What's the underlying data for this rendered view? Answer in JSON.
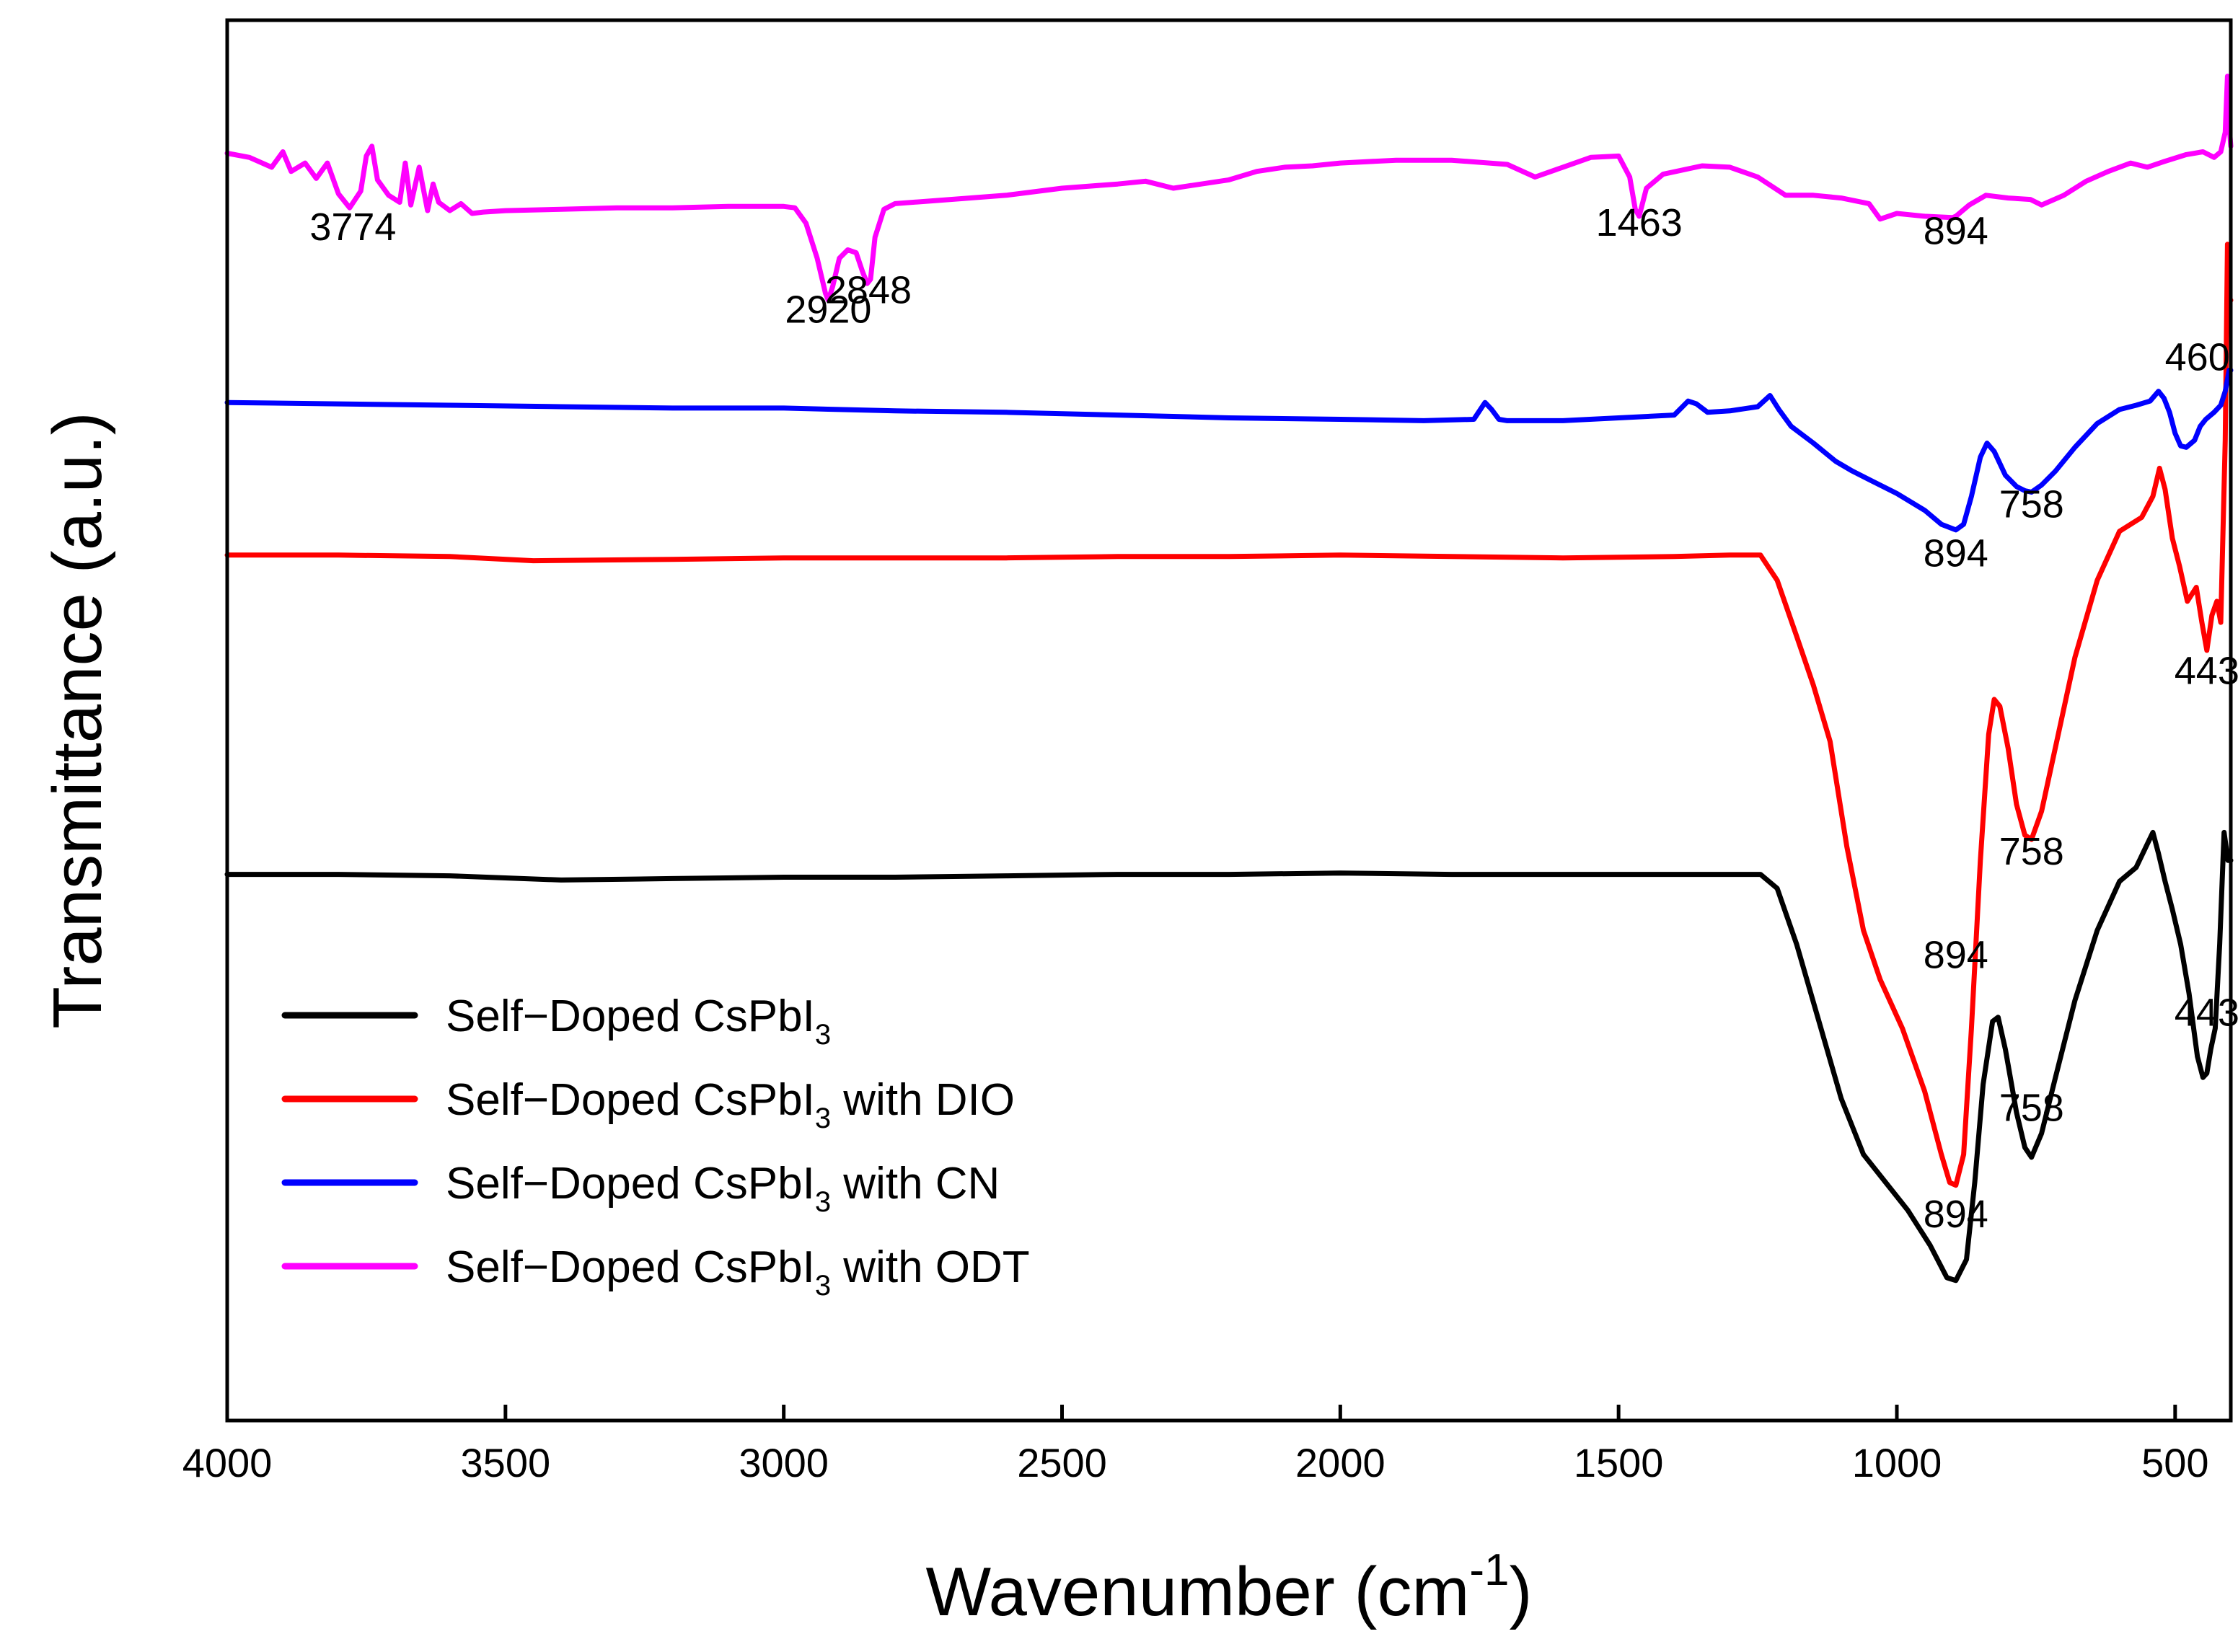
{
  "chart_data": {
    "type": "line",
    "title": "",
    "xlabel_main": "Wavenumber (cm",
    "xlabel_sup": "-1",
    "xlabel_close": ")",
    "ylabel": "Transmittance (a.u.)",
    "xlim": [
      4000,
      400
    ],
    "xticks": [
      4000,
      3500,
      3000,
      2500,
      2000,
      1500,
      1000,
      500
    ],
    "xtick_labels": [
      "4000",
      "3500",
      "3000",
      "2500",
      "2000",
      "1500",
      "1000",
      "500"
    ],
    "y_units": "arbitrary (vertically offset traces)",
    "ylim": [
      0,
      100
    ],
    "legend_position": "bottom-left",
    "series": [
      {
        "name": "Self-Doped CsPbI3",
        "legend_label": "Self−Doped CsPbI",
        "legend_sub": "3",
        "legend_suffix": "",
        "color": "#000000",
        "points": [
          [
            4000,
            39.0
          ],
          [
            3800,
            39.0
          ],
          [
            3600,
            38.9
          ],
          [
            3400,
            38.6
          ],
          [
            3200,
            38.7
          ],
          [
            3000,
            38.8
          ],
          [
            2800,
            38.8
          ],
          [
            2600,
            38.9
          ],
          [
            2400,
            39.0
          ],
          [
            2200,
            39.0
          ],
          [
            2000,
            39.1
          ],
          [
            1800,
            39.0
          ],
          [
            1600,
            39.0
          ],
          [
            1400,
            39.0
          ],
          [
            1300,
            39.0
          ],
          [
            1245,
            39.0
          ],
          [
            1215,
            38.0
          ],
          [
            1180,
            34.0
          ],
          [
            1140,
            28.5
          ],
          [
            1100,
            23.0
          ],
          [
            1060,
            19.0
          ],
          [
            1020,
            17.0
          ],
          [
            980,
            15.0
          ],
          [
            940,
            12.5
          ],
          [
            910,
            10.2
          ],
          [
            894,
            10.0
          ],
          [
            875,
            11.5
          ],
          [
            860,
            17.0
          ],
          [
            845,
            24.0
          ],
          [
            828,
            28.5
          ],
          [
            818,
            28.8
          ],
          [
            805,
            26.5
          ],
          [
            785,
            22.0
          ],
          [
            770,
            19.5
          ],
          [
            758,
            18.8
          ],
          [
            740,
            20.5
          ],
          [
            715,
            24.5
          ],
          [
            680,
            30.0
          ],
          [
            640,
            35.0
          ],
          [
            600,
            38.5
          ],
          [
            570,
            39.5
          ],
          [
            552,
            41.0
          ],
          [
            540,
            42.0
          ],
          [
            530,
            40.5
          ],
          [
            518,
            38.5
          ],
          [
            505,
            36.5
          ],
          [
            490,
            34.0
          ],
          [
            475,
            30.5
          ],
          [
            460,
            26.0
          ],
          [
            450,
            24.5
          ],
          [
            443,
            24.8
          ],
          [
            436,
            26.5
          ],
          [
            428,
            28.0
          ],
          [
            420,
            34.0
          ],
          [
            412,
            42.0
          ],
          [
            405,
            40.0
          ],
          [
            400,
            40.0
          ]
        ]
      },
      {
        "name": "Self-Doped CsPbI3 with DIO",
        "legend_label": "Self−Doped CsPbI",
        "legend_sub": "3",
        "legend_suffix": " with DIO",
        "color": "#ff0000",
        "points": [
          [
            4000,
            61.8
          ],
          [
            3800,
            61.8
          ],
          [
            3600,
            61.7
          ],
          [
            3450,
            61.4
          ],
          [
            3200,
            61.5
          ],
          [
            3000,
            61.6
          ],
          [
            2800,
            61.6
          ],
          [
            2600,
            61.6
          ],
          [
            2400,
            61.7
          ],
          [
            2200,
            61.7
          ],
          [
            2000,
            61.8
          ],
          [
            1800,
            61.7
          ],
          [
            1600,
            61.6
          ],
          [
            1400,
            61.7
          ],
          [
            1300,
            61.8
          ],
          [
            1245,
            61.8
          ],
          [
            1215,
            60.0
          ],
          [
            1180,
            56.0
          ],
          [
            1150,
            52.5
          ],
          [
            1120,
            48.5
          ],
          [
            1090,
            41.0
          ],
          [
            1060,
            35.0
          ],
          [
            1030,
            31.5
          ],
          [
            990,
            28.0
          ],
          [
            950,
            23.5
          ],
          [
            920,
            19.0
          ],
          [
            905,
            17.0
          ],
          [
            894,
            16.8
          ],
          [
            880,
            19.0
          ],
          [
            866,
            28.0
          ],
          [
            850,
            40.0
          ],
          [
            835,
            49.0
          ],
          [
            825,
            51.5
          ],
          [
            815,
            51.0
          ],
          [
            800,
            48.0
          ],
          [
            785,
            44.0
          ],
          [
            770,
            41.8
          ],
          [
            758,
            41.5
          ],
          [
            740,
            43.5
          ],
          [
            710,
            49.0
          ],
          [
            680,
            54.5
          ],
          [
            640,
            60.0
          ],
          [
            600,
            63.5
          ],
          [
            560,
            64.5
          ],
          [
            540,
            66.0
          ],
          [
            528,
            68.0
          ],
          [
            518,
            66.5
          ],
          [
            505,
            63.0
          ],
          [
            492,
            61.0
          ],
          [
            478,
            58.5
          ],
          [
            462,
            59.5
          ],
          [
            452,
            57.0
          ],
          [
            443,
            55.0
          ],
          [
            434,
            57.5
          ],
          [
            425,
            58.5
          ],
          [
            418,
            57.0
          ],
          [
            410,
            70.0
          ],
          [
            406,
            84.0
          ],
          [
            402,
            80.0
          ],
          [
            400,
            80.0
          ]
        ]
      },
      {
        "name": "Self-Doped CsPbI3 with CN",
        "legend_label": "Self−Doped CsPbI",
        "legend_sub": "3",
        "legend_suffix": " with CN",
        "color": "#0000ff",
        "points": [
          [
            4000,
            72.7
          ],
          [
            3800,
            72.6
          ],
          [
            3600,
            72.5
          ],
          [
            3400,
            72.4
          ],
          [
            3200,
            72.3
          ],
          [
            3000,
            72.3
          ],
          [
            2800,
            72.1
          ],
          [
            2600,
            72.0
          ],
          [
            2400,
            71.8
          ],
          [
            2200,
            71.6
          ],
          [
            2000,
            71.5
          ],
          [
            1850,
            71.4
          ],
          [
            1760,
            71.5
          ],
          [
            1740,
            72.7
          ],
          [
            1728,
            72.2
          ],
          [
            1715,
            71.5
          ],
          [
            1700,
            71.4
          ],
          [
            1600,
            71.4
          ],
          [
            1500,
            71.6
          ],
          [
            1400,
            71.8
          ],
          [
            1375,
            72.8
          ],
          [
            1360,
            72.6
          ],
          [
            1340,
            72.0
          ],
          [
            1300,
            72.1
          ],
          [
            1250,
            72.4
          ],
          [
            1228,
            73.2
          ],
          [
            1212,
            72.2
          ],
          [
            1190,
            71.0
          ],
          [
            1150,
            69.8
          ],
          [
            1110,
            68.5
          ],
          [
            1080,
            67.8
          ],
          [
            1050,
            67.2
          ],
          [
            1000,
            66.2
          ],
          [
            950,
            65.0
          ],
          [
            920,
            64.0
          ],
          [
            894,
            63.6
          ],
          [
            880,
            64.0
          ],
          [
            866,
            66.0
          ],
          [
            850,
            68.8
          ],
          [
            838,
            69.8
          ],
          [
            825,
            69.2
          ],
          [
            805,
            67.5
          ],
          [
            785,
            66.7
          ],
          [
            770,
            66.4
          ],
          [
            758,
            66.3
          ],
          [
            740,
            66.8
          ],
          [
            715,
            67.8
          ],
          [
            680,
            69.5
          ],
          [
            640,
            71.2
          ],
          [
            600,
            72.2
          ],
          [
            570,
            72.5
          ],
          [
            545,
            72.8
          ],
          [
            530,
            73.5
          ],
          [
            520,
            73.0
          ],
          [
            510,
            72.0
          ],
          [
            500,
            70.5
          ],
          [
            490,
            69.6
          ],
          [
            480,
            69.5
          ],
          [
            465,
            70.0
          ],
          [
            455,
            71.0
          ],
          [
            445,
            71.5
          ],
          [
            430,
            72.0
          ],
          [
            418,
            72.5
          ],
          [
            410,
            73.5
          ],
          [
            403,
            75.0
          ],
          [
            400,
            75.0
          ]
        ]
      },
      {
        "name": "Self-Doped CsPbI3 with ODT",
        "legend_label": "Self−Doped CsPbI",
        "legend_sub": "3",
        "legend_suffix": " with ODT",
        "color": "#ff00ff",
        "points": [
          [
            4000,
            90.5
          ],
          [
            3960,
            90.2
          ],
          [
            3920,
            89.5
          ],
          [
            3900,
            90.6
          ],
          [
            3885,
            89.2
          ],
          [
            3860,
            89.8
          ],
          [
            3840,
            88.7
          ],
          [
            3820,
            89.8
          ],
          [
            3800,
            87.6
          ],
          [
            3780,
            86.6
          ],
          [
            3760,
            87.8
          ],
          [
            3750,
            90.3
          ],
          [
            3740,
            91.0
          ],
          [
            3730,
            88.6
          ],
          [
            3710,
            87.5
          ],
          [
            3690,
            87.0
          ],
          [
            3680,
            89.8
          ],
          [
            3670,
            86.8
          ],
          [
            3655,
            89.5
          ],
          [
            3640,
            86.4
          ],
          [
            3630,
            88.3
          ],
          [
            3620,
            87.0
          ],
          [
            3600,
            86.4
          ],
          [
            3580,
            86.9
          ],
          [
            3560,
            86.2
          ],
          [
            3540,
            86.3
          ],
          [
            3500,
            86.4
          ],
          [
            3400,
            86.5
          ],
          [
            3300,
            86.6
          ],
          [
            3200,
            86.6
          ],
          [
            3100,
            86.7
          ],
          [
            3000,
            86.7
          ],
          [
            2980,
            86.6
          ],
          [
            2960,
            85.5
          ],
          [
            2940,
            83.0
          ],
          [
            2925,
            80.5
          ],
          [
            2920,
            80.0
          ],
          [
            2912,
            81.0
          ],
          [
            2900,
            83.0
          ],
          [
            2885,
            83.6
          ],
          [
            2870,
            83.4
          ],
          [
            2858,
            82.0
          ],
          [
            2850,
            81.2
          ],
          [
            2844,
            81.5
          ],
          [
            2836,
            84.5
          ],
          [
            2820,
            86.5
          ],
          [
            2800,
            86.9
          ],
          [
            2700,
            87.2
          ],
          [
            2600,
            87.5
          ],
          [
            2500,
            88.0
          ],
          [
            2400,
            88.3
          ],
          [
            2350,
            88.5
          ],
          [
            2300,
            88.0
          ],
          [
            2200,
            88.6
          ],
          [
            2150,
            89.2
          ],
          [
            2100,
            89.5
          ],
          [
            2050,
            89.6
          ],
          [
            2000,
            89.8
          ],
          [
            1900,
            90.0
          ],
          [
            1800,
            90.0
          ],
          [
            1700,
            89.7
          ],
          [
            1650,
            88.8
          ],
          [
            1600,
            89.5
          ],
          [
            1550,
            90.2
          ],
          [
            1500,
            90.3
          ],
          [
            1480,
            88.8
          ],
          [
            1470,
            86.5
          ],
          [
            1463,
            86.0
          ],
          [
            1450,
            88.0
          ],
          [
            1420,
            89.0
          ],
          [
            1350,
            89.6
          ],
          [
            1300,
            89.5
          ],
          [
            1250,
            88.8
          ],
          [
            1200,
            87.5
          ],
          [
            1150,
            87.5
          ],
          [
            1100,
            87.3
          ],
          [
            1050,
            86.9
          ],
          [
            1030,
            85.8
          ],
          [
            1000,
            86.2
          ],
          [
            950,
            86.0
          ],
          [
            900,
            85.9
          ],
          [
            894,
            86.0
          ],
          [
            870,
            86.8
          ],
          [
            840,
            87.5
          ],
          [
            800,
            87.3
          ],
          [
            760,
            87.2
          ],
          [
            740,
            86.8
          ],
          [
            700,
            87.5
          ],
          [
            660,
            88.5
          ],
          [
            620,
            89.2
          ],
          [
            580,
            89.8
          ],
          [
            550,
            89.5
          ],
          [
            520,
            89.9
          ],
          [
            480,
            90.4
          ],
          [
            450,
            90.6
          ],
          [
            430,
            90.2
          ],
          [
            418,
            90.6
          ],
          [
            410,
            92.0
          ],
          [
            406,
            96.0
          ],
          [
            402,
            92.0
          ],
          [
            400,
            91.0
          ]
        ]
      }
    ],
    "annotations": [
      {
        "text": "3774",
        "series": "ODT",
        "x": 3774,
        "y": 84.3
      },
      {
        "text": "2920",
        "series": "ODT",
        "x": 2920,
        "y": 78.4
      },
      {
        "text": "2848",
        "series": "ODT",
        "x": 2848,
        "y": 79.8
      },
      {
        "text": "1463",
        "series": "ODT",
        "x": 1463,
        "y": 84.6
      },
      {
        "text": "894",
        "series": "ODT",
        "x": 894,
        "y": 84.0
      },
      {
        "text": "460",
        "series": "CN",
        "x": 460,
        "y": 75.0
      },
      {
        "text": "758",
        "series": "CN",
        "x": 758,
        "y": 64.5
      },
      {
        "text": "894",
        "series": "CN",
        "x": 894,
        "y": 61.0
      },
      {
        "text": "443",
        "series": "DIO",
        "x": 443,
        "y": 52.6
      },
      {
        "text": "758",
        "series": "DIO",
        "x": 758,
        "y": 39.7
      },
      {
        "text": "894",
        "series": "DIO",
        "x": 894,
        "y": 32.3
      },
      {
        "text": "443",
        "series": "Black",
        "x": 443,
        "y": 28.2
      },
      {
        "text": "758",
        "series": "Black",
        "x": 758,
        "y": 21.4
      },
      {
        "text": "894",
        "series": "Black",
        "x": 894,
        "y": 13.8
      }
    ]
  }
}
